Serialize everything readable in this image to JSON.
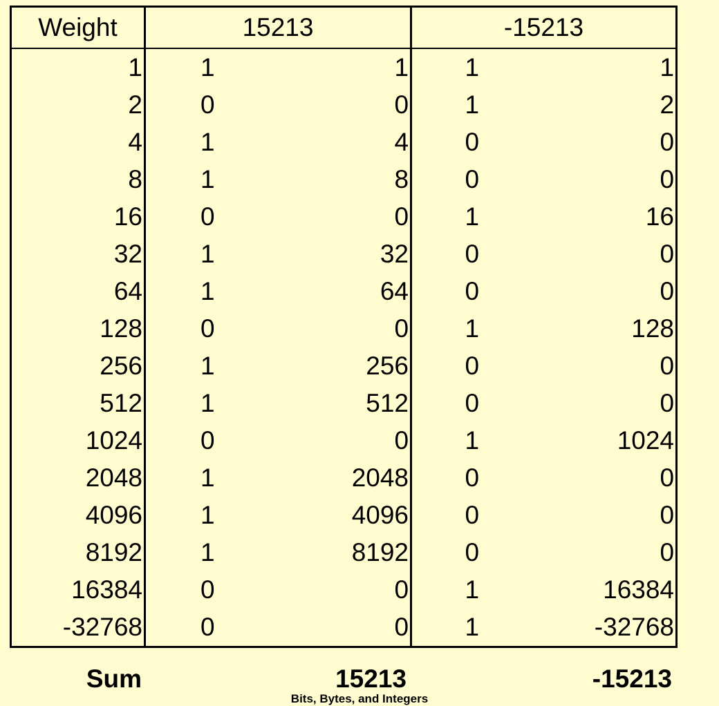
{
  "header": {
    "weight": "Weight",
    "group_a": "15213",
    "group_b": "-15213"
  },
  "rows": [
    {
      "weight": "1",
      "bit_a": "1",
      "val_a": "1",
      "bit_b": "1",
      "val_b": "1"
    },
    {
      "weight": "2",
      "bit_a": "0",
      "val_a": "0",
      "bit_b": "1",
      "val_b": "2"
    },
    {
      "weight": "4",
      "bit_a": "1",
      "val_a": "4",
      "bit_b": "0",
      "val_b": "0"
    },
    {
      "weight": "8",
      "bit_a": "1",
      "val_a": "8",
      "bit_b": "0",
      "val_b": "0"
    },
    {
      "weight": "16",
      "bit_a": "0",
      "val_a": "0",
      "bit_b": "1",
      "val_b": "16"
    },
    {
      "weight": "32",
      "bit_a": "1",
      "val_a": "32",
      "bit_b": "0",
      "val_b": "0"
    },
    {
      "weight": "64",
      "bit_a": "1",
      "val_a": "64",
      "bit_b": "0",
      "val_b": "0"
    },
    {
      "weight": "128",
      "bit_a": "0",
      "val_a": "0",
      "bit_b": "1",
      "val_b": "128"
    },
    {
      "weight": "256",
      "bit_a": "1",
      "val_a": "256",
      "bit_b": "0",
      "val_b": "0"
    },
    {
      "weight": "512",
      "bit_a": "1",
      "val_a": "512",
      "bit_b": "0",
      "val_b": "0"
    },
    {
      "weight": "1024",
      "bit_a": "0",
      "val_a": "0",
      "bit_b": "1",
      "val_b": "1024"
    },
    {
      "weight": "2048",
      "bit_a": "1",
      "val_a": "2048",
      "bit_b": "0",
      "val_b": "0"
    },
    {
      "weight": "4096",
      "bit_a": "1",
      "val_a": "4096",
      "bit_b": "0",
      "val_b": "0"
    },
    {
      "weight": "8192",
      "bit_a": "1",
      "val_a": "8192",
      "bit_b": "0",
      "val_b": "0"
    },
    {
      "weight": "16384",
      "bit_a": "0",
      "val_a": "0",
      "bit_b": "1",
      "val_b": "16384"
    },
    {
      "weight": "-32768",
      "bit_a": "0",
      "val_a": "0",
      "bit_b": "1",
      "val_b": "-32768"
    }
  ],
  "sum": {
    "label": "Sum",
    "value_a": "15213",
    "value_b": "-15213"
  },
  "footer": {
    "caption": "Bits, Bytes, and Integers"
  }
}
